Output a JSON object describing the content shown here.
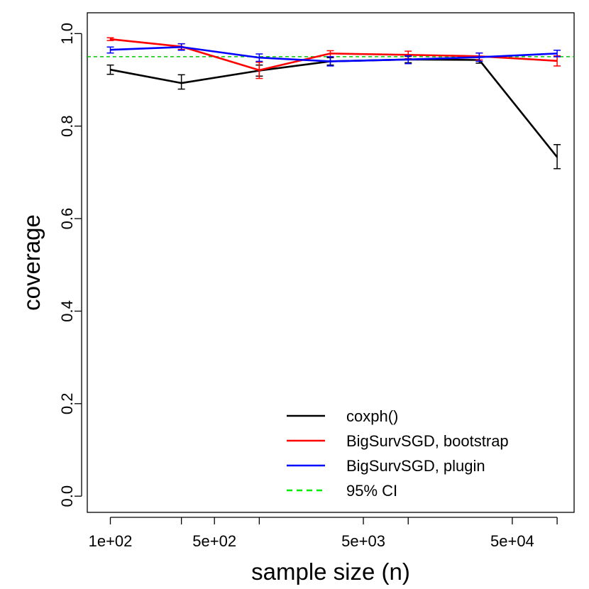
{
  "chart_data": {
    "type": "line",
    "xlabel": "sample size (n)",
    "ylabel": "coverage",
    "x_scale": "log10",
    "xlim": [
      70,
      130000
    ],
    "ylim": [
      -0.035,
      1.045
    ],
    "x_ticks": [
      {
        "value": 100,
        "label": "1e+02"
      },
      {
        "value": 300,
        "label": ""
      },
      {
        "value": 500,
        "label": "5e+02"
      },
      {
        "value": 1000,
        "label": ""
      },
      {
        "value": 5000,
        "label": "5e+03"
      },
      {
        "value": 10000,
        "label": ""
      },
      {
        "value": 50000,
        "label": "5e+04"
      },
      {
        "value": 100000,
        "label": ""
      }
    ],
    "y_ticks": [
      {
        "value": 0.0,
        "label": "0.0"
      },
      {
        "value": 0.2,
        "label": "0.2"
      },
      {
        "value": 0.4,
        "label": "0.4"
      },
      {
        "value": 0.6,
        "label": "0.6"
      },
      {
        "value": 0.8,
        "label": "0.8"
      },
      {
        "value": 1.0,
        "label": "1.0"
      }
    ],
    "x": [
      100,
      300,
      1000,
      3000,
      10000,
      30000,
      100000
    ],
    "series": [
      {
        "name": "coxph()",
        "color": "#000000",
        "values": [
          0.922,
          0.893,
          0.92,
          0.94,
          0.944,
          0.943,
          0.733
        ],
        "err_low": [
          0.912,
          0.88,
          0.908,
          0.932,
          0.937,
          0.936,
          0.708
        ],
        "err_high": [
          0.932,
          0.911,
          0.932,
          0.948,
          0.951,
          0.95,
          0.76
        ]
      },
      {
        "name": "BigSurvSGD, bootstrap",
        "color": "#ff0000",
        "values": [
          0.988,
          0.972,
          0.921,
          0.957,
          0.954,
          0.951,
          0.941
        ],
        "err_low": [
          0.985,
          0.966,
          0.903,
          0.95,
          0.946,
          0.943,
          0.93
        ],
        "err_high": [
          0.991,
          0.978,
          0.938,
          0.963,
          0.962,
          0.958,
          0.952
        ]
      },
      {
        "name": "BigSurvSGD, plugin",
        "color": "#0000ff",
        "values": [
          0.965,
          0.971,
          0.948,
          0.94,
          0.944,
          0.949,
          0.957
        ],
        "err_low": [
          0.958,
          0.964,
          0.94,
          0.93,
          0.935,
          0.94,
          0.95
        ],
        "err_high": [
          0.971,
          0.978,
          0.956,
          0.95,
          0.952,
          0.958,
          0.964
        ]
      }
    ],
    "reference_line": {
      "name": "95% CI",
      "value": 0.95,
      "color": "#00cc00",
      "style": "dashed"
    },
    "legend": {
      "position": "bottom-right",
      "entries": [
        {
          "label": "coxph()",
          "color": "#000000",
          "style": "solid"
        },
        {
          "label": "BigSurvSGD, bootstrap",
          "color": "#ff0000",
          "style": "solid"
        },
        {
          "label": "BigSurvSGD, plugin",
          "color": "#0000ff",
          "style": "solid"
        },
        {
          "label": "95% CI",
          "color": "#00ee00",
          "style": "dashed"
        }
      ]
    },
    "grid": false
  }
}
